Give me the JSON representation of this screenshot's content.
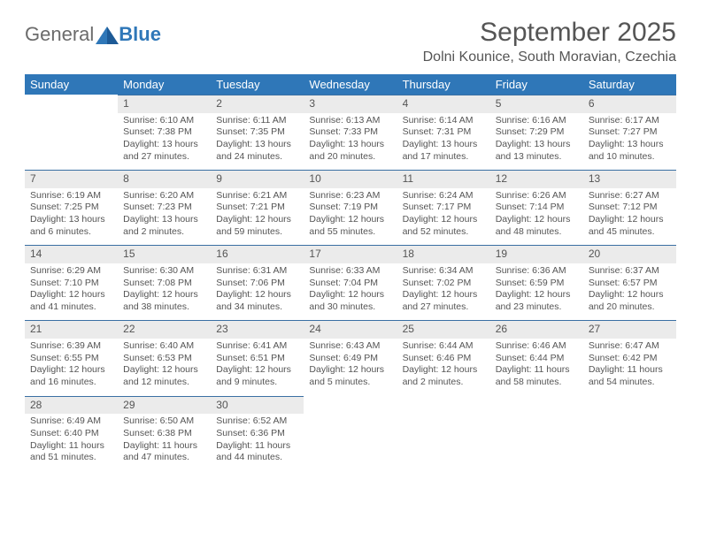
{
  "brand": {
    "general": "General",
    "blue": "Blue"
  },
  "title": "September 2025",
  "location": "Dolni Kounice, South Moravian, Czechia",
  "colors": {
    "header_bg": "#2f77b8",
    "daynum_bg": "#ebebeb",
    "row_rule": "#3a6fa3",
    "text": "#555555"
  },
  "daynames": [
    "Sunday",
    "Monday",
    "Tuesday",
    "Wednesday",
    "Thursday",
    "Friday",
    "Saturday"
  ],
  "weeks": [
    [
      null,
      {
        "n": "1",
        "sr": "Sunrise: 6:10 AM",
        "ss": "Sunset: 7:38 PM",
        "dl": "Daylight: 13 hours and 27 minutes."
      },
      {
        "n": "2",
        "sr": "Sunrise: 6:11 AM",
        "ss": "Sunset: 7:35 PM",
        "dl": "Daylight: 13 hours and 24 minutes."
      },
      {
        "n": "3",
        "sr": "Sunrise: 6:13 AM",
        "ss": "Sunset: 7:33 PM",
        "dl": "Daylight: 13 hours and 20 minutes."
      },
      {
        "n": "4",
        "sr": "Sunrise: 6:14 AM",
        "ss": "Sunset: 7:31 PM",
        "dl": "Daylight: 13 hours and 17 minutes."
      },
      {
        "n": "5",
        "sr": "Sunrise: 6:16 AM",
        "ss": "Sunset: 7:29 PM",
        "dl": "Daylight: 13 hours and 13 minutes."
      },
      {
        "n": "6",
        "sr": "Sunrise: 6:17 AM",
        "ss": "Sunset: 7:27 PM",
        "dl": "Daylight: 13 hours and 10 minutes."
      }
    ],
    [
      {
        "n": "7",
        "sr": "Sunrise: 6:19 AM",
        "ss": "Sunset: 7:25 PM",
        "dl": "Daylight: 13 hours and 6 minutes."
      },
      {
        "n": "8",
        "sr": "Sunrise: 6:20 AM",
        "ss": "Sunset: 7:23 PM",
        "dl": "Daylight: 13 hours and 2 minutes."
      },
      {
        "n": "9",
        "sr": "Sunrise: 6:21 AM",
        "ss": "Sunset: 7:21 PM",
        "dl": "Daylight: 12 hours and 59 minutes."
      },
      {
        "n": "10",
        "sr": "Sunrise: 6:23 AM",
        "ss": "Sunset: 7:19 PM",
        "dl": "Daylight: 12 hours and 55 minutes."
      },
      {
        "n": "11",
        "sr": "Sunrise: 6:24 AM",
        "ss": "Sunset: 7:17 PM",
        "dl": "Daylight: 12 hours and 52 minutes."
      },
      {
        "n": "12",
        "sr": "Sunrise: 6:26 AM",
        "ss": "Sunset: 7:14 PM",
        "dl": "Daylight: 12 hours and 48 minutes."
      },
      {
        "n": "13",
        "sr": "Sunrise: 6:27 AM",
        "ss": "Sunset: 7:12 PM",
        "dl": "Daylight: 12 hours and 45 minutes."
      }
    ],
    [
      {
        "n": "14",
        "sr": "Sunrise: 6:29 AM",
        "ss": "Sunset: 7:10 PM",
        "dl": "Daylight: 12 hours and 41 minutes."
      },
      {
        "n": "15",
        "sr": "Sunrise: 6:30 AM",
        "ss": "Sunset: 7:08 PM",
        "dl": "Daylight: 12 hours and 38 minutes."
      },
      {
        "n": "16",
        "sr": "Sunrise: 6:31 AM",
        "ss": "Sunset: 7:06 PM",
        "dl": "Daylight: 12 hours and 34 minutes."
      },
      {
        "n": "17",
        "sr": "Sunrise: 6:33 AM",
        "ss": "Sunset: 7:04 PM",
        "dl": "Daylight: 12 hours and 30 minutes."
      },
      {
        "n": "18",
        "sr": "Sunrise: 6:34 AM",
        "ss": "Sunset: 7:02 PM",
        "dl": "Daylight: 12 hours and 27 minutes."
      },
      {
        "n": "19",
        "sr": "Sunrise: 6:36 AM",
        "ss": "Sunset: 6:59 PM",
        "dl": "Daylight: 12 hours and 23 minutes."
      },
      {
        "n": "20",
        "sr": "Sunrise: 6:37 AM",
        "ss": "Sunset: 6:57 PM",
        "dl": "Daylight: 12 hours and 20 minutes."
      }
    ],
    [
      {
        "n": "21",
        "sr": "Sunrise: 6:39 AM",
        "ss": "Sunset: 6:55 PM",
        "dl": "Daylight: 12 hours and 16 minutes."
      },
      {
        "n": "22",
        "sr": "Sunrise: 6:40 AM",
        "ss": "Sunset: 6:53 PM",
        "dl": "Daylight: 12 hours and 12 minutes."
      },
      {
        "n": "23",
        "sr": "Sunrise: 6:41 AM",
        "ss": "Sunset: 6:51 PM",
        "dl": "Daylight: 12 hours and 9 minutes."
      },
      {
        "n": "24",
        "sr": "Sunrise: 6:43 AM",
        "ss": "Sunset: 6:49 PM",
        "dl": "Daylight: 12 hours and 5 minutes."
      },
      {
        "n": "25",
        "sr": "Sunrise: 6:44 AM",
        "ss": "Sunset: 6:46 PM",
        "dl": "Daylight: 12 hours and 2 minutes."
      },
      {
        "n": "26",
        "sr": "Sunrise: 6:46 AM",
        "ss": "Sunset: 6:44 PM",
        "dl": "Daylight: 11 hours and 58 minutes."
      },
      {
        "n": "27",
        "sr": "Sunrise: 6:47 AM",
        "ss": "Sunset: 6:42 PM",
        "dl": "Daylight: 11 hours and 54 minutes."
      }
    ],
    [
      {
        "n": "28",
        "sr": "Sunrise: 6:49 AM",
        "ss": "Sunset: 6:40 PM",
        "dl": "Daylight: 11 hours and 51 minutes."
      },
      {
        "n": "29",
        "sr": "Sunrise: 6:50 AM",
        "ss": "Sunset: 6:38 PM",
        "dl": "Daylight: 11 hours and 47 minutes."
      },
      {
        "n": "30",
        "sr": "Sunrise: 6:52 AM",
        "ss": "Sunset: 6:36 PM",
        "dl": "Daylight: 11 hours and 44 minutes."
      },
      null,
      null,
      null,
      null
    ]
  ]
}
